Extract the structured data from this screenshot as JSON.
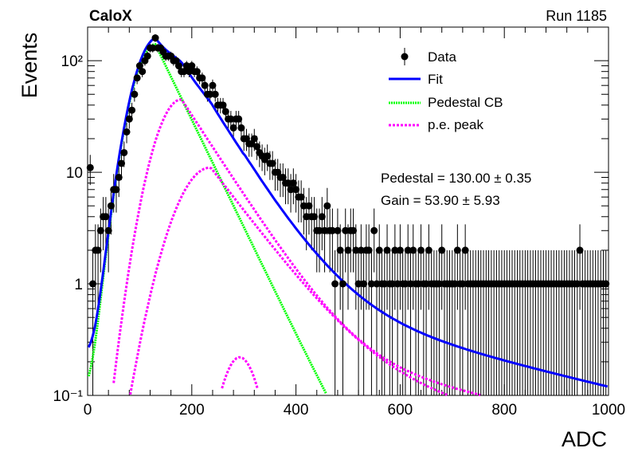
{
  "header": {
    "experiment": "CaloX",
    "run": "Run 1185"
  },
  "fit_results": {
    "pedestal": "Pedestal = 130.00 ± 0.35",
    "gain": "Gain = 53.90 ± 5.93"
  },
  "chart_data": {
    "type": "scatter",
    "xlabel": "ADC",
    "ylabel": "Events",
    "xlim": [
      0,
      1000
    ],
    "ylim": [
      0.1,
      200
    ],
    "ylog": true,
    "x_ticks": [
      0,
      200,
      400,
      600,
      800,
      1000
    ],
    "x_tick_labels": [
      "0",
      "200",
      "400",
      "600",
      "800",
      "1000"
    ],
    "y_ticks": [
      0.1,
      1,
      10,
      100
    ],
    "y_tick_labels": [
      "10⁻¹",
      "1",
      "10",
      "10²"
    ],
    "legend": {
      "position": "top-right",
      "entries": [
        "Data",
        "Fit",
        "Pedestal CB",
        "p.e. peak"
      ]
    },
    "colors": {
      "data": "#000000",
      "fit": "#0000ff",
      "pedestal": "#00ff00",
      "pe": "#ff00ff"
    },
    "series": [
      {
        "name": "Data",
        "x": [
          5,
          10,
          15,
          20,
          25,
          30,
          35,
          40,
          45,
          50,
          55,
          60,
          65,
          70,
          75,
          80,
          85,
          90,
          95,
          100,
          105,
          110,
          115,
          120,
          125,
          130,
          135,
          140,
          145,
          150,
          155,
          160,
          165,
          170,
          175,
          180,
          185,
          190,
          195,
          200,
          205,
          210,
          215,
          220,
          225,
          230,
          235,
          240,
          245,
          250,
          255,
          260,
          265,
          270,
          275,
          280,
          285,
          290,
          295,
          300,
          305,
          310,
          315,
          320,
          325,
          330,
          335,
          340,
          345,
          350,
          355,
          360,
          365,
          370,
          375,
          380,
          385,
          390,
          395,
          400,
          405,
          410,
          415,
          420,
          425,
          430,
          435,
          440,
          445,
          450,
          455,
          460,
          465,
          470,
          475,
          480,
          485,
          490,
          495,
          500,
          505,
          510,
          515,
          520,
          525,
          530,
          535,
          540,
          545,
          550,
          555,
          560,
          565,
          570,
          575,
          580,
          585,
          590,
          595,
          600,
          605,
          610,
          615,
          620,
          625,
          630,
          635,
          640,
          645,
          650,
          655,
          660,
          665,
          670,
          675,
          680,
          685,
          690,
          695,
          700,
          705,
          710,
          715,
          720,
          725,
          730,
          735,
          740,
          745,
          750,
          755,
          760,
          765,
          770,
          775,
          780,
          785,
          790,
          795,
          800,
          805,
          810,
          815,
          820,
          825,
          830,
          835,
          840,
          845,
          850,
          855,
          860,
          865,
          870,
          875,
          880,
          885,
          890,
          895,
          900,
          905,
          910,
          915,
          920,
          925,
          930,
          935,
          940,
          945,
          950,
          955,
          960,
          965,
          970,
          975,
          980,
          985,
          990,
          995
        ],
        "y": [
          11,
          1,
          2,
          2,
          3,
          4,
          4,
          3,
          5,
          7,
          7,
          9,
          12,
          15,
          23,
          30,
          36,
          50,
          70,
          90,
          80,
          100,
          110,
          130,
          130,
          160,
          130,
          130,
          120,
          110,
          110,
          110,
          100,
          100,
          90,
          80,
          80,
          90,
          80,
          90,
          80,
          80,
          70,
          70,
          60,
          50,
          50,
          60,
          50,
          40,
          40,
          40,
          35,
          30,
          30,
          25,
          30,
          30,
          25,
          20,
          20,
          18,
          18,
          20,
          17,
          15,
          14,
          13,
          14,
          12,
          12,
          10,
          10,
          9,
          9,
          8,
          8,
          7,
          8,
          7,
          6,
          6,
          5,
          4,
          5,
          4,
          4,
          3,
          3,
          4,
          3,
          5,
          3,
          3,
          1,
          3,
          2,
          1,
          3,
          2,
          3,
          3,
          2,
          1,
          2,
          1,
          2,
          2,
          1,
          3,
          1,
          2,
          1,
          1,
          2,
          1,
          1,
          2,
          1,
          2,
          1,
          1,
          2,
          1,
          2,
          1,
          1,
          2,
          1,
          1,
          2,
          1,
          1,
          1,
          1,
          2,
          1,
          1,
          1,
          1,
          1,
          2,
          1,
          1,
          2,
          1,
          1,
          1,
          1,
          1,
          1,
          1,
          1,
          1,
          1,
          1,
          1,
          1,
          1,
          1,
          1,
          1,
          1,
          1,
          1,
          1,
          1,
          1,
          1,
          1,
          1,
          1,
          1,
          1,
          1,
          1,
          1,
          1,
          1,
          1,
          1,
          1,
          1,
          1,
          1,
          1,
          1,
          1,
          2,
          1,
          1,
          1,
          1,
          1,
          1,
          1,
          1,
          1,
          1
        ]
      }
    ]
  }
}
